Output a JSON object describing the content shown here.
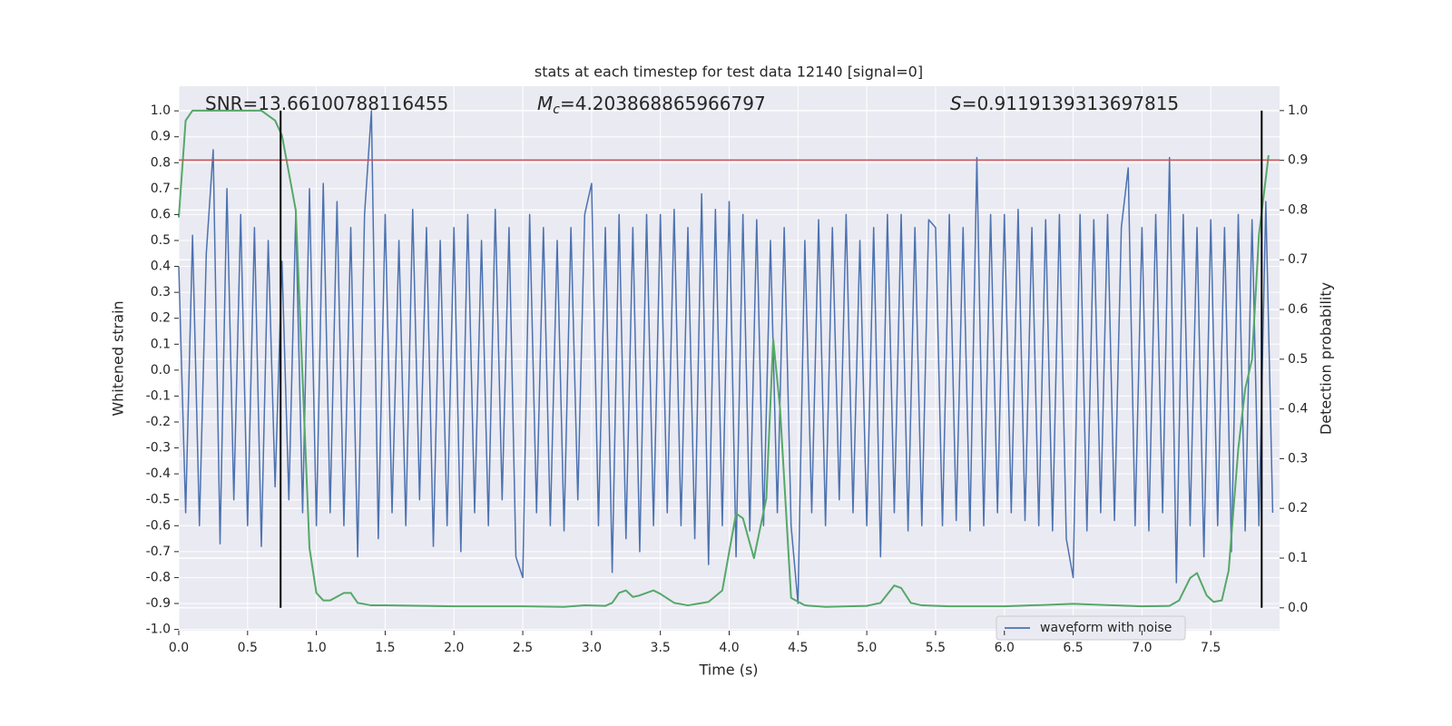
{
  "chart_data": {
    "type": "line",
    "title": "stats at each timestep for test data 12140 [signal=0]",
    "xlabel": "Time (s)",
    "ylabel": "Whitened strain",
    "y2label": "Detection probability",
    "annotations": {
      "snr": "SNR=13.66100788116455",
      "mc": {
        "symbol": "M",
        "subscript": "c",
        "text": "=4.203868865966797"
      },
      "s": {
        "symbol": "S",
        "text": "=0.9119139313697815"
      }
    },
    "xlim": [
      0,
      8.0
    ],
    "ylim": [
      -1.005,
      1.095
    ],
    "y2lim": [
      -0.046,
      1.049
    ],
    "xticks": [
      {
        "value": 0,
        "label": "0.0"
      },
      0.5,
      {
        "value": 1,
        "label": "1.0"
      },
      1.5,
      {
        "value": 2,
        "label": "2.0"
      },
      2.5,
      {
        "value": 3,
        "label": "3.0"
      },
      3.5,
      {
        "value": 4,
        "label": "4.0"
      },
      4.5,
      {
        "value": 5,
        "label": "5.0"
      },
      5.5,
      {
        "value": 6,
        "label": "6.0"
      },
      6.5,
      {
        "value": 7,
        "label": "7.0"
      },
      7.5
    ],
    "yticks": [
      {
        "value": -1,
        "label": "-1.0"
      },
      -0.9,
      -0.8,
      -0.7,
      -0.6,
      -0.5,
      -0.4,
      -0.3,
      -0.2,
      -0.1,
      {
        "value": 0,
        "label": "0.0"
      },
      0.1,
      0.2,
      0.3,
      0.4,
      0.5,
      0.6,
      0.7,
      0.8,
      0.9,
      {
        "value": 1,
        "label": "1.0"
      }
    ],
    "y2ticks": [
      {
        "value": 0,
        "label": "0.0"
      },
      0.1,
      0.2,
      0.3,
      0.4,
      0.5,
      0.6,
      0.7,
      0.8,
      0.9,
      {
        "value": 1,
        "label": "1.0"
      }
    ],
    "grid": true,
    "legend": "lower right",
    "series": [
      {
        "name": "waveform with noise",
        "color": "#4c72b0",
        "x": [
          0,
          0.05,
          0.1,
          0.15,
          0.2,
          0.25,
          0.3,
          0.35,
          0.4,
          0.45,
          0.5,
          0.55,
          0.6,
          0.65,
          0.7,
          0.75,
          0.8,
          0.85,
          0.9,
          0.95,
          1,
          1.05,
          1.1,
          1.15,
          1.2,
          1.25,
          1.3,
          1.35,
          1.4,
          1.45,
          1.5,
          1.55,
          1.6,
          1.65,
          1.7,
          1.75,
          1.8,
          1.85,
          1.9,
          1.95,
          2,
          2.05,
          2.1,
          2.15,
          2.2,
          2.25,
          2.3,
          2.35,
          2.4,
          2.45,
          2.5,
          2.55,
          2.6,
          2.65,
          2.7,
          2.75,
          2.8,
          2.85,
          2.9,
          2.95,
          3,
          3.05,
          3.1,
          3.15,
          3.2,
          3.25,
          3.3,
          3.35,
          3.4,
          3.45,
          3.5,
          3.55,
          3.6,
          3.65,
          3.7,
          3.75,
          3.8,
          3.85,
          3.9,
          3.95,
          4,
          4.05,
          4.1,
          4.15,
          4.2,
          4.25,
          4.3,
          4.35,
          4.4,
          4.45,
          4.5,
          4.55,
          4.6,
          4.65,
          4.7,
          4.75,
          4.8,
          4.85,
          4.9,
          4.95,
          5,
          5.05,
          5.1,
          5.15,
          5.2,
          5.25,
          5.3,
          5.35,
          5.4,
          5.45,
          5.5,
          5.55,
          5.6,
          5.65,
          5.7,
          5.75,
          5.8,
          5.85,
          5.9,
          5.95,
          6,
          6.05,
          6.1,
          6.15,
          6.2,
          6.25,
          6.3,
          6.35,
          6.4,
          6.45,
          6.5,
          6.55,
          6.6,
          6.65,
          6.7,
          6.75,
          6.8,
          6.85,
          6.9,
          6.95,
          7,
          7.05,
          7.1,
          7.15,
          7.2,
          7.25,
          7.3,
          7.35,
          7.4,
          7.45,
          7.5,
          7.55,
          7.6,
          7.65,
          7.7,
          7.75,
          7.8,
          7.85,
          7.9,
          7.95
        ],
        "values": [
          0.4,
          -0.55,
          0.52,
          -0.6,
          0.45,
          0.85,
          -0.67,
          0.7,
          -0.5,
          0.6,
          -0.6,
          0.55,
          -0.68,
          0.5,
          -0.45,
          0.42,
          -0.5,
          0.6,
          -0.55,
          0.7,
          -0.6,
          0.72,
          -0.55,
          0.65,
          -0.6,
          0.55,
          -0.72,
          0.6,
          1.0,
          -0.65,
          0.6,
          -0.55,
          0.5,
          -0.6,
          0.62,
          -0.5,
          0.55,
          -0.68,
          0.5,
          -0.6,
          0.55,
          -0.7,
          0.6,
          -0.55,
          0.5,
          -0.6,
          0.62,
          -0.5,
          0.55,
          -0.72,
          -0.8,
          0.6,
          -0.55,
          0.55,
          -0.6,
          0.5,
          -0.62,
          0.55,
          -0.5,
          0.6,
          0.72,
          -0.6,
          0.55,
          -0.78,
          0.6,
          -0.65,
          0.55,
          -0.7,
          0.6,
          -0.6,
          0.6,
          -0.55,
          0.62,
          -0.6,
          0.55,
          -0.65,
          0.68,
          -0.75,
          0.62,
          -0.6,
          0.65,
          -0.72,
          0.6,
          -0.62,
          0.58,
          -0.6,
          0.5,
          -0.55,
          0.55,
          -0.6,
          -0.9,
          0.5,
          -0.55,
          0.58,
          -0.6,
          0.55,
          -0.5,
          0.6,
          -0.55,
          0.5,
          -0.6,
          0.55,
          -0.72,
          0.6,
          -0.55,
          0.6,
          -0.62,
          0.55,
          -0.6,
          0.58,
          0.55,
          -0.6,
          0.6,
          -0.58,
          0.55,
          -0.62,
          0.82,
          -0.6,
          0.6,
          -0.55,
          0.6,
          -0.55,
          0.62,
          -0.58,
          0.55,
          -0.6,
          0.58,
          -0.62,
          0.6,
          -0.65,
          -0.8,
          0.6,
          -0.62,
          0.58,
          -0.55,
          0.6,
          -0.58,
          0.55,
          0.78,
          -0.6,
          0.55,
          -0.62,
          0.6,
          -0.55,
          0.82,
          -0.82,
          0.6,
          -0.6,
          0.55,
          -0.72,
          0.58,
          -0.6,
          0.55,
          -0.7,
          0.6,
          -0.62,
          0.58,
          -0.6,
          0.65,
          -0.55
        ]
      },
      {
        "color": "#55a868",
        "axis": "y2",
        "x": [
          0,
          0.05,
          0.1,
          0.6,
          0.7,
          0.75,
          0.85,
          0.95,
          1,
          1.05,
          1.1,
          1.2,
          1.25,
          1.3,
          1.4,
          1.5,
          2,
          2.5,
          2.8,
          2.95,
          3.1,
          3.15,
          3.2,
          3.25,
          3.3,
          3.35,
          3.45,
          3.5,
          3.6,
          3.7,
          3.85,
          3.95,
          4.05,
          4.1,
          4.18,
          4.27,
          4.32,
          4.37,
          4.45,
          4.55,
          4.7,
          5,
          5.1,
          5.2,
          5.25,
          5.32,
          5.4,
          5.6,
          6,
          6.5,
          7,
          7.2,
          7.27,
          7.35,
          7.4,
          7.47,
          7.52,
          7.58,
          7.63,
          7.7,
          7.75,
          7.8,
          7.85,
          7.92
        ],
        "values": [
          0.785,
          0.98,
          1.0,
          1.0,
          0.98,
          0.95,
          0.8,
          0.12,
          0.03,
          0.015,
          0.015,
          0.03,
          0.03,
          0.01,
          0.005,
          0.005,
          0.003,
          0.003,
          0.002,
          0.005,
          0.004,
          0.01,
          0.03,
          0.035,
          0.022,
          0.025,
          0.035,
          0.028,
          0.01,
          0.005,
          0.012,
          0.035,
          0.19,
          0.18,
          0.1,
          0.22,
          0.54,
          0.4,
          0.02,
          0.005,
          0.002,
          0.004,
          0.01,
          0.045,
          0.04,
          0.01,
          0.005,
          0.003,
          0.003,
          0.008,
          0.003,
          0.004,
          0.015,
          0.06,
          0.07,
          0.025,
          0.012,
          0.015,
          0.075,
          0.32,
          0.44,
          0.5,
          0.75,
          0.91
        ]
      }
    ],
    "hlines": [
      {
        "value": 0.81,
        "color": "#c44e52"
      }
    ],
    "vlines": [
      {
        "value": 0.74,
        "color": "#000000"
      },
      {
        "value": 7.87,
        "color": "#000000"
      }
    ]
  }
}
